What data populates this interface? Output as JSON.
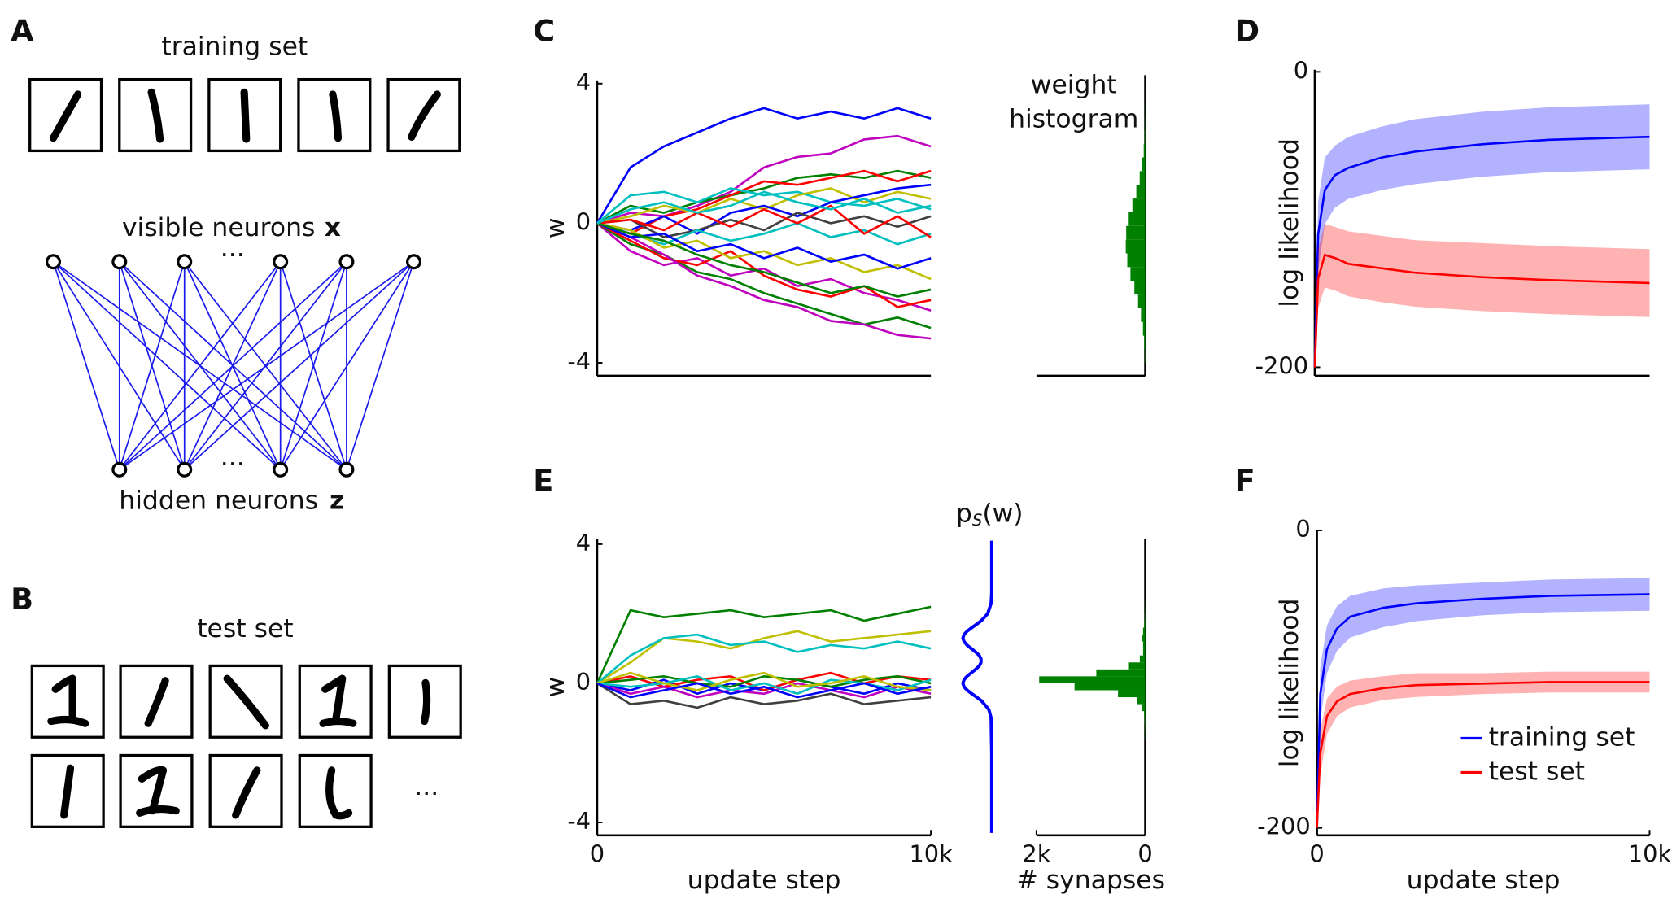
{
  "diagram_a": {
    "panel": "A",
    "title": "training set",
    "visible_label": "visible neurons",
    "visible_symbol": "x",
    "hidden_label": "hidden neurons",
    "hidden_symbol": "z",
    "ellipsis": "···"
  },
  "diagram_b": {
    "panel": "B",
    "title": "test set",
    "ellipsis": "..."
  },
  "chart_data": [
    {
      "type": "line",
      "panel": "C",
      "ylabel": "w",
      "xlim": [
        0,
        10000
      ],
      "ylim": [
        -4.37,
        4.09
      ],
      "yticks": [
        4,
        0,
        -4
      ],
      "x": [
        0,
        1000,
        2000,
        3000,
        4000,
        5000,
        6000,
        7000,
        8000,
        9000,
        10000
      ],
      "series": [
        {
          "color": "#0000ff",
          "values": [
            0,
            1.6,
            2.2,
            2.6,
            3.0,
            3.3,
            3.0,
            3.2,
            3.0,
            3.3,
            3.0
          ]
        },
        {
          "color": "#bf00bf",
          "values": [
            0,
            0.3,
            0.2,
            0.5,
            0.9,
            1.6,
            1.9,
            2.0,
            2.4,
            2.5,
            2.2
          ]
        },
        {
          "color": "#008000",
          "values": [
            0,
            0.5,
            0.3,
            0.6,
            0.8,
            1.0,
            1.3,
            1.4,
            1.3,
            1.5,
            1.3
          ]
        },
        {
          "color": "#ff0000",
          "values": [
            0,
            -0.3,
            0.2,
            0.4,
            0.8,
            1.2,
            1.1,
            1.3,
            1.5,
            1.2,
            1.5
          ]
        },
        {
          "color": "#00bfbf",
          "values": [
            0,
            0.8,
            0.9,
            0.6,
            1.0,
            0.8,
            0.9,
            0.6,
            0.5,
            0.7,
            0.4
          ]
        },
        {
          "color": "#bfbf00",
          "values": [
            0,
            0.2,
            0.5,
            0.3,
            0.7,
            0.4,
            0.8,
            1.0,
            0.6,
            0.9,
            0.7
          ]
        },
        {
          "color": "#0000ff",
          "values": [
            0,
            -0.2,
            0.2,
            -0.3,
            0.3,
            0.5,
            0.2,
            0.6,
            0.8,
            1.0,
            1.1
          ]
        },
        {
          "color": "#404040",
          "values": [
            0,
            0.1,
            -0.4,
            -0.2,
            0.1,
            -0.2,
            0.3,
            0.0,
            0.2,
            -0.1,
            0.2
          ]
        },
        {
          "color": "#00bfbf",
          "values": [
            0,
            -0.3,
            -0.6,
            -0.2,
            -0.5,
            -0.3,
            0.0,
            -0.4,
            -0.2,
            -0.6,
            -0.3
          ]
        },
        {
          "color": "#bf00bf",
          "values": [
            0,
            -0.8,
            -1.2,
            -1.0,
            -1.5,
            -1.3,
            -1.8,
            -1.6,
            -2.0,
            -2.2,
            -2.5
          ]
        },
        {
          "color": "#008000",
          "values": [
            0,
            -0.6,
            -0.9,
            -1.4,
            -1.6,
            -2.0,
            -2.3,
            -2.6,
            -2.9,
            -2.7,
            -3.0
          ]
        },
        {
          "color": "#ff0000",
          "values": [
            0,
            -0.5,
            -1.0,
            -1.2,
            -0.8,
            -1.5,
            -1.9,
            -2.1,
            -1.8,
            -2.4,
            -2.2
          ]
        },
        {
          "color": "#bf00bf",
          "values": [
            0,
            -0.4,
            -0.9,
            -1.5,
            -1.8,
            -2.2,
            -2.4,
            -2.8,
            -2.9,
            -3.2,
            -3.3
          ]
        },
        {
          "color": "#bfbf00",
          "values": [
            0,
            -0.2,
            -0.7,
            -0.5,
            -1.0,
            -0.8,
            -1.2,
            -1.0,
            -1.4,
            -1.2,
            -1.6
          ]
        },
        {
          "color": "#0000ff",
          "values": [
            0,
            -0.4,
            -0.3,
            -0.8,
            -0.6,
            -1.0,
            -0.7,
            -1.1,
            -0.9,
            -1.3,
            -1.0
          ]
        },
        {
          "color": "#ff0000",
          "values": [
            0,
            0.1,
            -0.2,
            0.3,
            -0.1,
            0.4,
            0.0,
            0.5,
            -0.3,
            0.2,
            -0.4
          ]
        },
        {
          "color": "#008000",
          "values": [
            0,
            -0.3,
            -0.5,
            -0.9,
            -1.2,
            -1.4,
            -1.7,
            -2.0,
            -1.8,
            -2.1,
            -1.9
          ]
        },
        {
          "color": "#00bfbf",
          "values": [
            0,
            0.4,
            0.6,
            0.3,
            0.5,
            0.9,
            0.6,
            0.4,
            0.7,
            0.3,
            0.5
          ]
        }
      ]
    },
    {
      "type": "histogram",
      "orientation": "horizontal",
      "title_lines": [
        "weight",
        "histogram"
      ],
      "color": "#008000",
      "xlim": [
        100,
        0
      ],
      "ylim": [
        -4.37,
        4.4
      ],
      "bins": [
        -4.0,
        -3.6,
        -3.2,
        -2.8,
        -2.4,
        -2.0,
        -1.6,
        -1.2,
        -0.8,
        -0.4,
        0,
        0.4,
        0.8,
        1.2,
        1.6,
        2.0,
        2.4,
        2.8,
        3.2,
        3.6,
        4.0,
        4.4
      ],
      "counts": [
        0.4,
        1.0,
        2.1,
        3.9,
        6.6,
        10.0,
        13.6,
        16.5,
        17.9,
        17.5,
        15.2,
        11.8,
        8.2,
        5.1,
        2.9,
        1.4,
        0.6,
        0.3,
        0.1,
        0.05,
        0.02
      ]
    },
    {
      "type": "line",
      "panel": "D",
      "ylabel": "log likelihood",
      "xlim": [
        0,
        10000
      ],
      "ylim": [
        -205.8,
        1.4
      ],
      "yticks": [
        0,
        -200
      ],
      "x": [
        0,
        100,
        300,
        600,
        1000,
        2000,
        3000,
        5000,
        7000,
        10000
      ],
      "series": [
        {
          "color": "#0000ff",
          "values": [
            -200,
            -110,
            -80,
            -70,
            -65,
            -58,
            -54,
            -49,
            -46,
            -44
          ],
          "lower": [
            -200,
            -135,
            -103,
            -92,
            -86,
            -80,
            -76,
            -71,
            -68,
            -66
          ],
          "upper": [
            -200,
            -88,
            -58,
            -50,
            -44,
            -37,
            -32,
            -27,
            -24,
            -22
          ]
        },
        {
          "color": "#ff0000",
          "values": [
            -200,
            -140,
            -124,
            -126,
            -130,
            -133,
            -136,
            -139,
            -141,
            -143
          ],
          "lower": [
            -200,
            -160,
            -146,
            -148,
            -152,
            -156,
            -159,
            -162,
            -164,
            -166
          ],
          "upper": [
            -200,
            -120,
            -103,
            -105,
            -108,
            -111,
            -114,
            -116,
            -118,
            -120
          ]
        }
      ]
    },
    {
      "type": "line",
      "panel": "E",
      "ylabel": "w",
      "xlabel": "update step",
      "xlim": [
        0,
        10000
      ],
      "ylim": [
        -4.37,
        4.15
      ],
      "yticks": [
        4,
        0,
        -4
      ],
      "xticks": [
        0,
        {
          "value": 10000,
          "label": "10k"
        }
      ],
      "x": [
        0,
        1000,
        2000,
        3000,
        4000,
        5000,
        6000,
        7000,
        8000,
        9000,
        10000
      ],
      "series": [
        {
          "color": "#008000",
          "values": [
            0,
            2.1,
            1.9,
            2.0,
            2.1,
            1.9,
            2.0,
            2.1,
            1.8,
            2.0,
            2.2
          ]
        },
        {
          "color": "#bfbf00",
          "values": [
            0,
            0.6,
            1.3,
            1.2,
            1.0,
            1.3,
            1.5,
            1.2,
            1.3,
            1.4,
            1.5
          ]
        },
        {
          "color": "#00bfbf",
          "values": [
            0,
            0.8,
            1.3,
            1.4,
            1.1,
            1.2,
            0.9,
            1.1,
            1.0,
            1.2,
            1.0
          ]
        },
        {
          "color": "#404040",
          "values": [
            0,
            -0.6,
            -0.5,
            -0.7,
            -0.4,
            -0.6,
            -0.5,
            -0.3,
            -0.6,
            -0.5,
            -0.4
          ]
        },
        {
          "color": "#0000ff",
          "values": [
            0,
            -0.2,
            0.1,
            -0.3,
            0.0,
            -0.2,
            0.1,
            -0.1,
            -0.3,
            0.0,
            -0.2
          ]
        },
        {
          "color": "#ff0000",
          "values": [
            0,
            0.2,
            -0.1,
            0.1,
            0.2,
            -0.2,
            0.1,
            0.3,
            0.0,
            0.2,
            0.1
          ]
        },
        {
          "color": "#bf00bf",
          "values": [
            0,
            -0.3,
            -0.1,
            -0.4,
            -0.2,
            -0.3,
            0.0,
            -0.2,
            -0.4,
            -0.1,
            -0.3
          ]
        },
        {
          "color": "#008000",
          "values": [
            0,
            0.1,
            0.2,
            0.0,
            -0.1,
            0.2,
            0.1,
            -0.1,
            0.1,
            0.2,
            0.0
          ]
        },
        {
          "color": "#00bfbf",
          "values": [
            0,
            -0.1,
            0.0,
            0.2,
            -0.2,
            0.0,
            -0.3,
            0.1,
            0.0,
            -0.2,
            0.1
          ]
        },
        {
          "color": "#bfbf00",
          "values": [
            0,
            0.3,
            0.0,
            -0.2,
            0.1,
            0.3,
            -0.1,
            0.0,
            0.2,
            -0.1,
            -0.2
          ]
        },
        {
          "color": "#0000ff",
          "values": [
            0,
            -0.4,
            -0.2,
            0.0,
            -0.3,
            -0.1,
            -0.4,
            -0.2,
            0.0,
            -0.3,
            -0.1
          ]
        }
      ]
    },
    {
      "type": "density",
      "title_main": "p",
      "title_sub": "S",
      "title_rest": "(w)",
      "color": "#0000ff",
      "xlim": [
        1,
        0
      ],
      "ylim": [
        -4.37,
        4.15
      ],
      "y": [
        -4.3,
        -2,
        -1,
        -0.75,
        -0.5,
        -0.4,
        -0.3,
        -0.2,
        -0.1,
        0,
        0.1,
        0.2,
        0.3,
        0.4,
        0.5,
        0.6,
        0.7,
        0.8,
        0.9,
        1.0,
        1.1,
        1.2,
        1.3,
        1.4,
        1.5,
        1.6,
        1.7,
        1.8,
        2.0,
        2.3,
        2.6,
        4.1
      ],
      "values": [
        0,
        0,
        0.02,
        0.1,
        0.36,
        0.52,
        0.69,
        0.85,
        0.96,
        1.0,
        0.96,
        0.86,
        0.71,
        0.56,
        0.43,
        0.37,
        0.37,
        0.43,
        0.56,
        0.71,
        0.86,
        0.96,
        1.0,
        0.96,
        0.85,
        0.69,
        0.52,
        0.36,
        0.14,
        0.02,
        0,
        0
      ]
    },
    {
      "type": "histogram",
      "orientation": "horizontal",
      "xlabel": "# synapses",
      "color": "#008000",
      "xlim": [
        2000,
        0
      ],
      "ylim": [
        -4.37,
        4.15
      ],
      "xticks": [
        {
          "value": 2000,
          "label": "2k"
        },
        0
      ],
      "bins": [
        -1.6,
        -1.4,
        -1.2,
        -1.0,
        -0.8,
        -0.6,
        -0.4,
        -0.2,
        0,
        0.2,
        0.4,
        0.6,
        0.8,
        1.0,
        1.2,
        1.4,
        1.6,
        1.8,
        2.0,
        2.2,
        2.4
      ],
      "counts": [
        5,
        8,
        12,
        20,
        60,
        150,
        500,
        1300,
        1950,
        900,
        300,
        100,
        40,
        40,
        60,
        40,
        20,
        10,
        5,
        3
      ]
    },
    {
      "type": "line",
      "panel": "F",
      "ylabel": "log likelihood",
      "xlabel": "update step",
      "legend": "lower right",
      "xlim": [
        0,
        10000
      ],
      "ylim": [
        -205,
        0
      ],
      "yticks": [
        0,
        -200
      ],
      "xticks": [
        0,
        {
          "value": 10000,
          "label": "10k"
        }
      ],
      "x": [
        0,
        100,
        300,
        600,
        1000,
        2000,
        3000,
        5000,
        7000,
        10000
      ],
      "series": [
        {
          "name": "training set",
          "color": "#0000ff",
          "values": [
            -200,
            -110,
            -80,
            -66,
            -58,
            -52,
            -49,
            -46,
            -44,
            -43
          ],
          "lower": [
            -200,
            -128,
            -96,
            -81,
            -72,
            -65,
            -61,
            -57,
            -55,
            -54
          ],
          "upper": [
            -200,
            -92,
            -64,
            -51,
            -44,
            -39,
            -37,
            -35,
            -33,
            -32
          ]
        },
        {
          "name": "test set",
          "color": "#ff0000",
          "values": [
            -200,
            -150,
            -125,
            -115,
            -110,
            -106,
            -104,
            -103,
            -102,
            -102
          ],
          "lower": [
            -200,
            -165,
            -137,
            -125,
            -119,
            -114,
            -112,
            -110,
            -109,
            -109
          ],
          "upper": [
            -200,
            -135,
            -113,
            -105,
            -101,
            -98,
            -96,
            -96,
            -95,
            -95
          ]
        }
      ]
    }
  ]
}
